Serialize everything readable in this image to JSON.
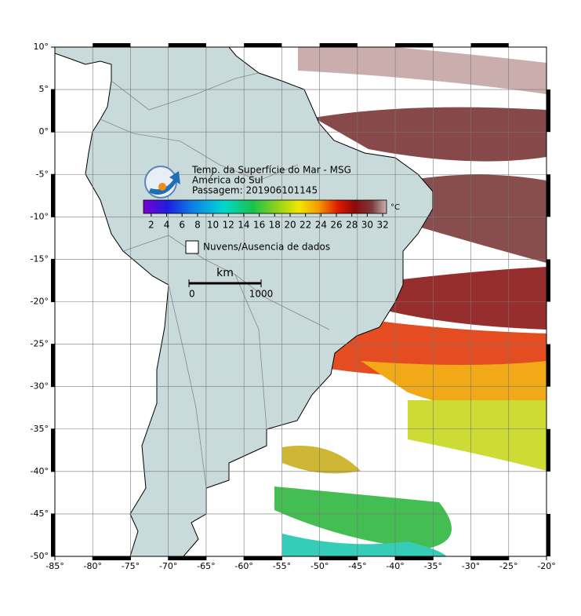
{
  "map": {
    "title_lines": [
      "Temp. da Superfície do Mar - MSG",
      "América do Sul",
      "Passagem: 201906101145"
    ],
    "colorbar": {
      "unit": "°C",
      "range": [
        1,
        32.5
      ],
      "ticks": [
        2,
        4,
        6,
        8,
        10,
        12,
        14,
        16,
        18,
        20,
        22,
        24,
        26,
        28,
        30,
        32
      ]
    },
    "legend": "Nuvens/Ausencia de dados",
    "scale_bar": {
      "unit": "km",
      "ticks": [
        0,
        1000
      ]
    },
    "xlim": [
      -85,
      -20
    ],
    "ylim": [
      -50,
      10
    ],
    "xticks": [
      {
        "value": -85,
        "label": "-85°"
      },
      {
        "value": -80,
        "label": "-80°"
      },
      {
        "value": -75,
        "label": "-75°"
      },
      {
        "value": -70,
        "label": "-70°"
      },
      {
        "value": -65,
        "label": "-65°"
      },
      {
        "value": -60,
        "label": "-60°"
      },
      {
        "value": -55,
        "label": "-55°"
      },
      {
        "value": -50,
        "label": "-50°"
      },
      {
        "value": -45,
        "label": "-45°"
      },
      {
        "value": -40,
        "label": "-40°"
      },
      {
        "value": -35,
        "label": "-35°"
      },
      {
        "value": -30,
        "label": "-30°"
      },
      {
        "value": -25,
        "label": "-25°"
      },
      {
        "value": -20,
        "label": "-20°"
      }
    ],
    "yticks": [
      {
        "value": 10,
        "label": "10°"
      },
      {
        "value": 5,
        "label": "5°"
      },
      {
        "value": 0,
        "label": "0°"
      },
      {
        "value": -5,
        "label": "-5°"
      },
      {
        "value": -10,
        "label": "-10°"
      },
      {
        "value": -15,
        "label": "-15°"
      },
      {
        "value": -20,
        "label": "-20°"
      },
      {
        "value": -25,
        "label": "-25°"
      },
      {
        "value": -30,
        "label": "-30°"
      },
      {
        "value": -35,
        "label": "-35°"
      },
      {
        "value": -40,
        "label": "-40°"
      },
      {
        "value": -45,
        "label": "-45°"
      },
      {
        "value": -50,
        "label": "-50°"
      }
    ]
  }
}
